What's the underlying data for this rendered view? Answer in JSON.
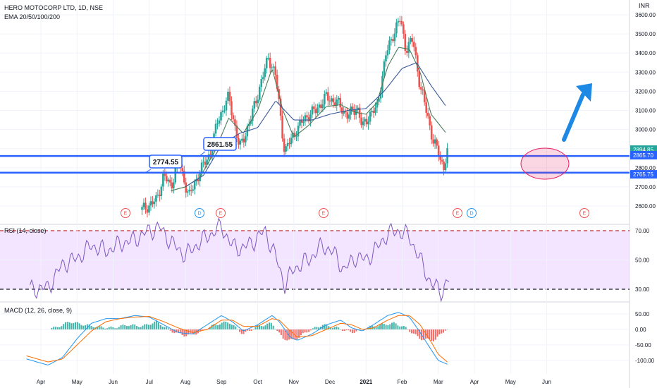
{
  "header": {
    "symbol": "HERO MOTOCORP LTD, 1D, NSE",
    "indicator": "EMA 20/50/100/200"
  },
  "currency": "INR",
  "chart_data": [
    {
      "type": "candlestick",
      "panel": "price",
      "y_ticks": [
        2600,
        2700,
        2800,
        2900,
        3000,
        3100,
        3200,
        3300,
        3400,
        3500,
        3600
      ],
      "y_tick_labels": [
        "2600.00",
        "2700.00",
        "2800.00",
        "2900.00",
        "3000.00",
        "3100.00",
        "3200.00",
        "3300.00",
        "3400.00",
        "3500.00",
        "3600.00"
      ],
      "ylim": [
        2540,
        3640
      ],
      "x_months": [
        "Apr",
        "May",
        "Jun",
        "Jul",
        "Aug",
        "Sep",
        "Oct",
        "Nov",
        "Dec",
        "2021",
        "Feb",
        "Mar",
        "Apr",
        "May",
        "Jun"
      ],
      "horizontal_levels": [
        2861.55,
        2774.55
      ],
      "callouts": [
        "2774.55",
        "2861.55"
      ],
      "price_tags": [
        {
          "label": "2894.85",
          "value": 2894.85,
          "color": "#26a69a"
        },
        {
          "label": "2865.70",
          "value": 2865.7,
          "color": "#2962ff"
        },
        {
          "label": "2765.75",
          "value": 2765.75,
          "color": "#2962ff"
        }
      ],
      "events": [
        "E",
        "D",
        "E",
        "E",
        "E",
        "D",
        "E"
      ],
      "close_anchors": [
        [
          2.8,
          2580
        ],
        [
          3.2,
          2630
        ],
        [
          3.4,
          2760
        ],
        [
          3.6,
          2700
        ],
        [
          3.8,
          2840
        ],
        [
          4.1,
          2650
        ],
        [
          4.4,
          2780
        ],
        [
          4.7,
          2880
        ],
        [
          4.9,
          3050
        ],
        [
          5.2,
          3170
        ],
        [
          5.5,
          2900
        ],
        [
          5.8,
          3050
        ],
        [
          6.1,
          3250
        ],
        [
          6.3,
          3380
        ],
        [
          6.5,
          3280
        ],
        [
          6.75,
          2880
        ],
        [
          6.95,
          2960
        ],
        [
          7.3,
          3060
        ],
        [
          7.6,
          3100
        ],
        [
          7.9,
          3170
        ],
        [
          8.2,
          3140
        ],
        [
          8.5,
          3070
        ],
        [
          8.75,
          3120
        ],
        [
          8.9,
          3010
        ],
        [
          9.1,
          3080
        ],
        [
          9.3,
          3110
        ],
        [
          9.55,
          3390
        ],
        [
          9.75,
          3500
        ],
        [
          9.95,
          3580
        ],
        [
          10.1,
          3420
        ],
        [
          10.3,
          3470
        ],
        [
          10.5,
          3220
        ],
        [
          10.7,
          3080
        ],
        [
          10.85,
          2940
        ],
        [
          11.0,
          2880
        ],
        [
          11.15,
          2800
        ],
        [
          11.25,
          2880
        ]
      ],
      "ema_fast_anchors": [
        [
          3.6,
          2680
        ],
        [
          4.0,
          2700
        ],
        [
          4.4,
          2750
        ],
        [
          4.8,
          2880
        ],
        [
          5.2,
          3060
        ],
        [
          5.6,
          2980
        ],
        [
          6.0,
          3100
        ],
        [
          6.4,
          3320
        ],
        [
          6.7,
          3100
        ],
        [
          7.0,
          2960
        ],
        [
          7.4,
          3020
        ],
        [
          7.9,
          3120
        ],
        [
          8.3,
          3130
        ],
        [
          8.7,
          3090
        ],
        [
          9.0,
          3080
        ],
        [
          9.3,
          3140
        ],
        [
          9.6,
          3330
        ],
        [
          9.9,
          3430
        ],
        [
          10.2,
          3420
        ],
        [
          10.5,
          3300
        ],
        [
          10.8,
          3080
        ],
        [
          11.2,
          2985
        ]
      ],
      "ema_slow_anchors": [
        [
          4.0,
          2700
        ],
        [
          4.5,
          2760
        ],
        [
          5.0,
          2920
        ],
        [
          5.5,
          2980
        ],
        [
          6.0,
          3010
        ],
        [
          6.5,
          3150
        ],
        [
          7.0,
          3050
        ],
        [
          7.5,
          3050
        ],
        [
          8.0,
          3080
        ],
        [
          8.5,
          3100
        ],
        [
          9.0,
          3110
        ],
        [
          9.5,
          3200
        ],
        [
          10.0,
          3320
        ],
        [
          10.4,
          3350
        ],
        [
          10.8,
          3230
        ],
        [
          11.2,
          3125
        ]
      ]
    },
    {
      "type": "line",
      "panel": "rsi",
      "title": "RSI (14, close)",
      "y_ticks": [
        30,
        50,
        70
      ],
      "y_tick_labels": [
        "30.00",
        "50.00",
        "70.00"
      ],
      "ylim": [
        22,
        78
      ],
      "levels": [
        70,
        30
      ],
      "anchors": [
        [
          -0.3,
          30
        ],
        [
          0.2,
          31
        ],
        [
          0.6,
          47
        ],
        [
          1.0,
          51
        ],
        [
          1.4,
          60
        ],
        [
          1.8,
          56
        ],
        [
          2.2,
          61
        ],
        [
          2.6,
          64
        ],
        [
          3.0,
          70
        ],
        [
          3.3,
          72
        ],
        [
          3.6,
          62
        ],
        [
          4.0,
          53
        ],
        [
          4.3,
          60
        ],
        [
          4.6,
          66
        ],
        [
          5.0,
          73
        ],
        [
          5.3,
          59
        ],
        [
          5.6,
          58
        ],
        [
          5.9,
          63
        ],
        [
          6.2,
          70
        ],
        [
          6.5,
          52
        ],
        [
          6.75,
          33
        ],
        [
          7.0,
          44
        ],
        [
          7.4,
          50
        ],
        [
          7.8,
          60
        ],
        [
          8.1,
          55
        ],
        [
          8.4,
          43
        ],
        [
          8.7,
          52
        ],
        [
          9.0,
          50
        ],
        [
          9.3,
          58
        ],
        [
          9.6,
          68
        ],
        [
          9.9,
          70
        ],
        [
          10.2,
          66
        ],
        [
          10.5,
          50
        ],
        [
          10.8,
          34
        ],
        [
          11.1,
          28
        ],
        [
          11.25,
          36
        ]
      ]
    },
    {
      "type": "bar",
      "panel": "macd",
      "title": "MACD (12, 26, close, 9)",
      "y_ticks": [
        -100,
        -50,
        0,
        50
      ],
      "y_tick_labels": [
        "-100.00",
        "-50.00",
        "0.00",
        "50.00"
      ],
      "ylim": [
        -130,
        70
      ],
      "histogram_anchors": [
        [
          0.4,
          5
        ],
        [
          0.8,
          25
        ],
        [
          1.2,
          15
        ],
        [
          1.6,
          8
        ],
        [
          2.0,
          5
        ],
        [
          2.4,
          15
        ],
        [
          2.8,
          10
        ],
        [
          3.2,
          25
        ],
        [
          3.6,
          -5
        ],
        [
          4.0,
          -20
        ],
        [
          4.4,
          -10
        ],
        [
          4.8,
          15
        ],
        [
          5.2,
          25
        ],
        [
          5.6,
          -15
        ],
        [
          6.0,
          10
        ],
        [
          6.4,
          20
        ],
        [
          6.7,
          -30
        ],
        [
          7.0,
          -35
        ],
        [
          7.4,
          -5
        ],
        [
          7.8,
          15
        ],
        [
          8.2,
          5
        ],
        [
          8.6,
          -10
        ],
        [
          9.0,
          5
        ],
        [
          9.4,
          15
        ],
        [
          9.8,
          20
        ],
        [
          10.1,
          5
        ],
        [
          10.5,
          -30
        ],
        [
          10.9,
          -35
        ],
        [
          11.2,
          0
        ]
      ],
      "macd_anchors": [
        [
          -0.4,
          -95
        ],
        [
          0.2,
          -115
        ],
        [
          0.6,
          -90
        ],
        [
          1.0,
          -30
        ],
        [
          1.4,
          20
        ],
        [
          1.8,
          35
        ],
        [
          2.2,
          35
        ],
        [
          2.6,
          45
        ],
        [
          3.0,
          40
        ],
        [
          3.4,
          15
        ],
        [
          3.8,
          -10
        ],
        [
          4.2,
          -15
        ],
        [
          4.6,
          15
        ],
        [
          5.0,
          45
        ],
        [
          5.3,
          25
        ],
        [
          5.6,
          -5
        ],
        [
          6.0,
          15
        ],
        [
          6.4,
          45
        ],
        [
          6.6,
          25
        ],
        [
          6.9,
          -25
        ],
        [
          7.1,
          -35
        ],
        [
          7.5,
          -15
        ],
        [
          7.9,
          15
        ],
        [
          8.3,
          30
        ],
        [
          8.6,
          5
        ],
        [
          8.9,
          -5
        ],
        [
          9.2,
          15
        ],
        [
          9.6,
          45
        ],
        [
          9.9,
          55
        ],
        [
          10.2,
          40
        ],
        [
          10.5,
          -10
        ],
        [
          10.8,
          -65
        ],
        [
          11.0,
          -100
        ],
        [
          11.25,
          -112
        ]
      ],
      "signal_anchors": [
        [
          -0.4,
          -85
        ],
        [
          0.2,
          -105
        ],
        [
          0.6,
          -95
        ],
        [
          1.0,
          -50
        ],
        [
          1.4,
          -5
        ],
        [
          1.8,
          25
        ],
        [
          2.2,
          35
        ],
        [
          2.6,
          40
        ],
        [
          3.0,
          42
        ],
        [
          3.4,
          25
        ],
        [
          3.8,
          5
        ],
        [
          4.2,
          -10
        ],
        [
          4.6,
          0
        ],
        [
          5.0,
          30
        ],
        [
          5.3,
          30
        ],
        [
          5.6,
          10
        ],
        [
          6.0,
          10
        ],
        [
          6.4,
          35
        ],
        [
          6.6,
          30
        ],
        [
          6.9,
          -5
        ],
        [
          7.1,
          -25
        ],
        [
          7.5,
          -20
        ],
        [
          7.9,
          0
        ],
        [
          8.3,
          20
        ],
        [
          8.6,
          15
        ],
        [
          8.9,
          0
        ],
        [
          9.2,
          5
        ],
        [
          9.6,
          30
        ],
        [
          9.9,
          45
        ],
        [
          10.2,
          45
        ],
        [
          10.5,
          15
        ],
        [
          10.8,
          -40
        ],
        [
          11.0,
          -80
        ],
        [
          11.25,
          -105
        ]
      ]
    }
  ]
}
